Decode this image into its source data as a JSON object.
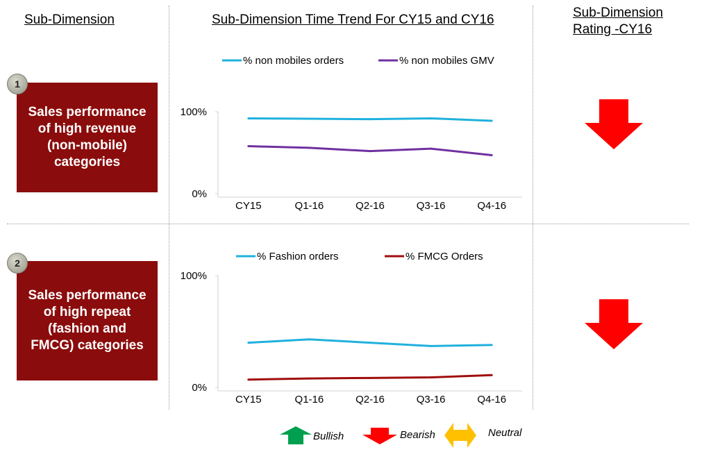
{
  "headers": {
    "sub_dimension": "Sub-Dimension",
    "time_trend": "Sub-Dimension Time Trend For CY15 and CY16",
    "rating_line1": "Sub-Dimension",
    "rating_line2": "Rating -CY16"
  },
  "rows": [
    {
      "badge": "1",
      "label": "Sales performance\nof high revenue\n(non-mobile)\ncategories",
      "rating": "Bearish"
    },
    {
      "badge": "2",
      "label": "Sales performance\nof high repeat\n(fashion and\nFMCG) categories",
      "rating": "Bearish"
    }
  ],
  "chart_data": [
    {
      "type": "line",
      "categories": [
        "CY15",
        "Q1-16",
        "Q2-16",
        "Q3-16",
        "Q4-16"
      ],
      "series": [
        {
          "name": "% non mobiles orders",
          "color": "#1fb1dd",
          "values": [
            92,
            91.5,
            91,
            92,
            89
          ]
        },
        {
          "name": "% non mobiles GMV",
          "color": "#7030a0",
          "values": [
            58,
            56,
            52,
            55,
            47
          ]
        }
      ],
      "ylim": [
        0,
        100
      ],
      "y_ticks": [
        "0%",
        "100%"
      ],
      "legend": "top",
      "grid": false
    },
    {
      "type": "line",
      "categories": [
        "CY15",
        "Q1-16",
        "Q2-16",
        "Q3-16",
        "Q4-16"
      ],
      "series": [
        {
          "name": "% Fashion orders",
          "color": "#1fb1dd",
          "values": [
            40,
            43,
            40,
            37,
            38
          ]
        },
        {
          "name": "% FMCG Orders",
          "color": "#a00c0c",
          "values": [
            7,
            8,
            8.5,
            9,
            11
          ]
        }
      ],
      "ylim": [
        0,
        100
      ],
      "y_ticks": [
        "0%",
        "100%"
      ],
      "legend": "top",
      "grid": false
    }
  ],
  "key": {
    "bullish": "Bullish",
    "bearish": "Bearish",
    "neutral": "Neutral",
    "colors": {
      "bullish": "#00a050",
      "bearish": "#ff0000",
      "neutral": "#ffc000"
    }
  }
}
